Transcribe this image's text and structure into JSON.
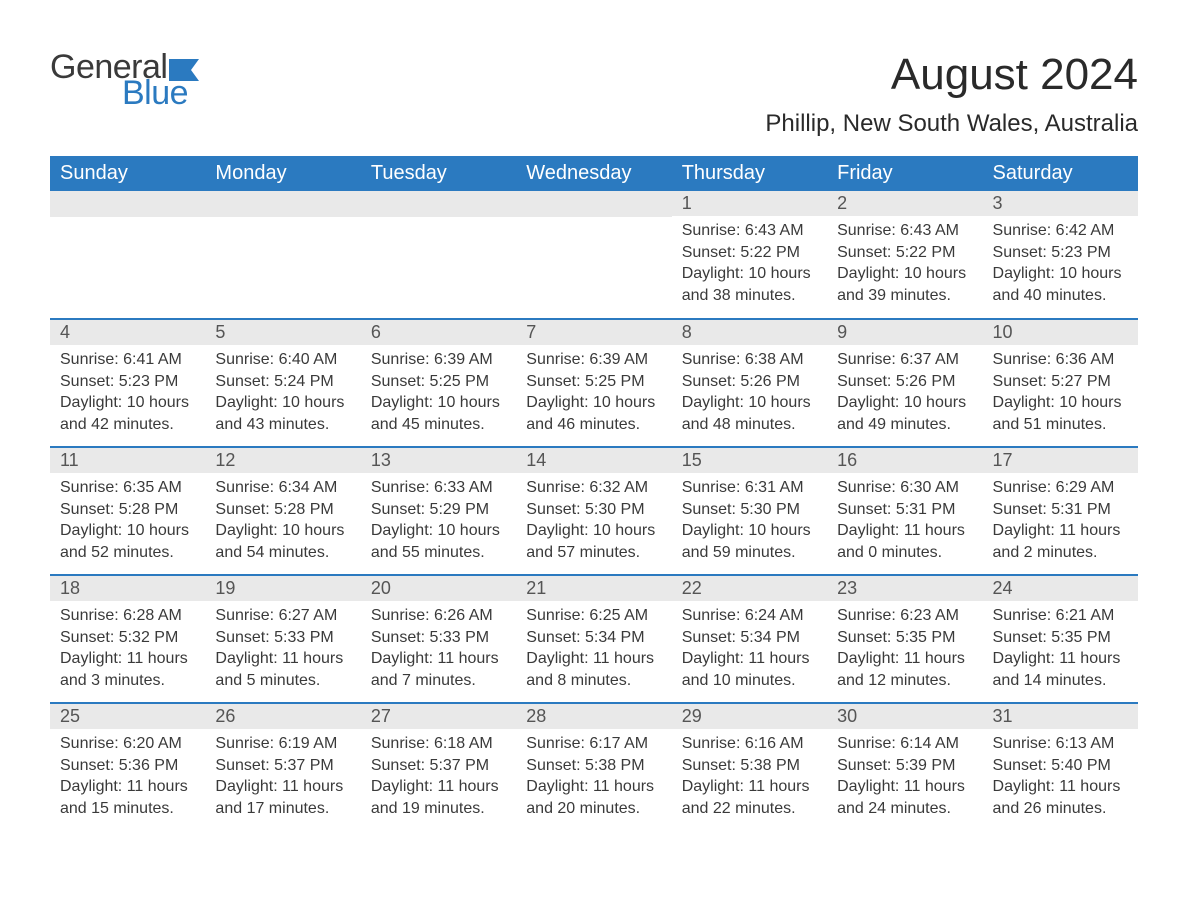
{
  "logo": {
    "text_general": "General",
    "text_blue": "Blue",
    "flag_color": "#2b7ac0",
    "general_color": "#3a3a3a",
    "blue_color": "#2b7ac0"
  },
  "title": "August 2024",
  "location": "Phillip, New South Wales, Australia",
  "colors": {
    "header_bg": "#2b7ac0",
    "header_text": "#ffffff",
    "daynum_bg": "#e9e9e9",
    "daynum_text": "#555555",
    "body_text": "#3a3a3a",
    "row_divider": "#2b7ac0",
    "page_bg": "#ffffff"
  },
  "typography": {
    "title_fontsize": 44,
    "location_fontsize": 24,
    "header_fontsize": 20,
    "daynum_fontsize": 18,
    "body_fontsize": 16
  },
  "weekdays": [
    "Sunday",
    "Monday",
    "Tuesday",
    "Wednesday",
    "Thursday",
    "Friday",
    "Saturday"
  ],
  "first_weekday_index": 4,
  "days": [
    {
      "n": 1,
      "sunrise": "6:43 AM",
      "sunset": "5:22 PM",
      "daylight": "10 hours and 38 minutes."
    },
    {
      "n": 2,
      "sunrise": "6:43 AM",
      "sunset": "5:22 PM",
      "daylight": "10 hours and 39 minutes."
    },
    {
      "n": 3,
      "sunrise": "6:42 AM",
      "sunset": "5:23 PM",
      "daylight": "10 hours and 40 minutes."
    },
    {
      "n": 4,
      "sunrise": "6:41 AM",
      "sunset": "5:23 PM",
      "daylight": "10 hours and 42 minutes."
    },
    {
      "n": 5,
      "sunrise": "6:40 AM",
      "sunset": "5:24 PM",
      "daylight": "10 hours and 43 minutes."
    },
    {
      "n": 6,
      "sunrise": "6:39 AM",
      "sunset": "5:25 PM",
      "daylight": "10 hours and 45 minutes."
    },
    {
      "n": 7,
      "sunrise": "6:39 AM",
      "sunset": "5:25 PM",
      "daylight": "10 hours and 46 minutes."
    },
    {
      "n": 8,
      "sunrise": "6:38 AM",
      "sunset": "5:26 PM",
      "daylight": "10 hours and 48 minutes."
    },
    {
      "n": 9,
      "sunrise": "6:37 AM",
      "sunset": "5:26 PM",
      "daylight": "10 hours and 49 minutes."
    },
    {
      "n": 10,
      "sunrise": "6:36 AM",
      "sunset": "5:27 PM",
      "daylight": "10 hours and 51 minutes."
    },
    {
      "n": 11,
      "sunrise": "6:35 AM",
      "sunset": "5:28 PM",
      "daylight": "10 hours and 52 minutes."
    },
    {
      "n": 12,
      "sunrise": "6:34 AM",
      "sunset": "5:28 PM",
      "daylight": "10 hours and 54 minutes."
    },
    {
      "n": 13,
      "sunrise": "6:33 AM",
      "sunset": "5:29 PM",
      "daylight": "10 hours and 55 minutes."
    },
    {
      "n": 14,
      "sunrise": "6:32 AM",
      "sunset": "5:30 PM",
      "daylight": "10 hours and 57 minutes."
    },
    {
      "n": 15,
      "sunrise": "6:31 AM",
      "sunset": "5:30 PM",
      "daylight": "10 hours and 59 minutes."
    },
    {
      "n": 16,
      "sunrise": "6:30 AM",
      "sunset": "5:31 PM",
      "daylight": "11 hours and 0 minutes."
    },
    {
      "n": 17,
      "sunrise": "6:29 AM",
      "sunset": "5:31 PM",
      "daylight": "11 hours and 2 minutes."
    },
    {
      "n": 18,
      "sunrise": "6:28 AM",
      "sunset": "5:32 PM",
      "daylight": "11 hours and 3 minutes."
    },
    {
      "n": 19,
      "sunrise": "6:27 AM",
      "sunset": "5:33 PM",
      "daylight": "11 hours and 5 minutes."
    },
    {
      "n": 20,
      "sunrise": "6:26 AM",
      "sunset": "5:33 PM",
      "daylight": "11 hours and 7 minutes."
    },
    {
      "n": 21,
      "sunrise": "6:25 AM",
      "sunset": "5:34 PM",
      "daylight": "11 hours and 8 minutes."
    },
    {
      "n": 22,
      "sunrise": "6:24 AM",
      "sunset": "5:34 PM",
      "daylight": "11 hours and 10 minutes."
    },
    {
      "n": 23,
      "sunrise": "6:23 AM",
      "sunset": "5:35 PM",
      "daylight": "11 hours and 12 minutes."
    },
    {
      "n": 24,
      "sunrise": "6:21 AM",
      "sunset": "5:35 PM",
      "daylight": "11 hours and 14 minutes."
    },
    {
      "n": 25,
      "sunrise": "6:20 AM",
      "sunset": "5:36 PM",
      "daylight": "11 hours and 15 minutes."
    },
    {
      "n": 26,
      "sunrise": "6:19 AM",
      "sunset": "5:37 PM",
      "daylight": "11 hours and 17 minutes."
    },
    {
      "n": 27,
      "sunrise": "6:18 AM",
      "sunset": "5:37 PM",
      "daylight": "11 hours and 19 minutes."
    },
    {
      "n": 28,
      "sunrise": "6:17 AM",
      "sunset": "5:38 PM",
      "daylight": "11 hours and 20 minutes."
    },
    {
      "n": 29,
      "sunrise": "6:16 AM",
      "sunset": "5:38 PM",
      "daylight": "11 hours and 22 minutes."
    },
    {
      "n": 30,
      "sunrise": "6:14 AM",
      "sunset": "5:39 PM",
      "daylight": "11 hours and 24 minutes."
    },
    {
      "n": 31,
      "sunrise": "6:13 AM",
      "sunset": "5:40 PM",
      "daylight": "11 hours and 26 minutes."
    }
  ],
  "labels": {
    "sunrise": "Sunrise: ",
    "sunset": "Sunset: ",
    "daylight": "Daylight: "
  }
}
